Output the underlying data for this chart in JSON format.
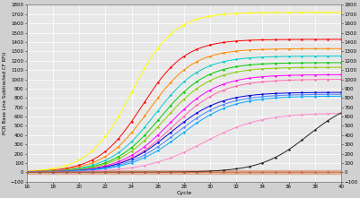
{
  "title": "",
  "xlabel": "Cycle",
  "ylabel": "PCR Base Line Subtracted CF RFU",
  "xlim": [
    16,
    40
  ],
  "ylim": [
    -100,
    1800
  ],
  "yticks": [
    -100,
    0,
    100,
    200,
    300,
    400,
    500,
    600,
    700,
    800,
    900,
    1000,
    1100,
    1200,
    1300,
    1400,
    1500,
    1600,
    1700,
    1800
  ],
  "xticks": [
    16,
    18,
    20,
    22,
    24,
    26,
    28,
    30,
    32,
    34,
    36,
    38,
    40
  ],
  "curves": [
    {
      "color": "#ffff00",
      "plateau": 1720,
      "midpoint": 24.0,
      "steepness": 0.62
    },
    {
      "color": "#ff0000",
      "plateau": 1430,
      "midpoint": 24.8,
      "steepness": 0.6
    },
    {
      "color": "#ff8800",
      "plateau": 1330,
      "midpoint": 25.3,
      "steepness": 0.58
    },
    {
      "color": "#00cccc",
      "plateau": 1250,
      "midpoint": 25.8,
      "steepness": 0.57
    },
    {
      "color": "#00cc00",
      "plateau": 1180,
      "midpoint": 26.2,
      "steepness": 0.56
    },
    {
      "color": "#88cc00",
      "plateau": 1130,
      "midpoint": 26.5,
      "steepness": 0.55
    },
    {
      "color": "#ff00ff",
      "plateau": 1050,
      "midpoint": 26.9,
      "steepness": 0.54
    },
    {
      "color": "#ff66aa",
      "plateau": 1000,
      "midpoint": 27.2,
      "steepness": 0.53
    },
    {
      "color": "#0000dd",
      "plateau": 860,
      "midpoint": 27.0,
      "steepness": 0.53
    },
    {
      "color": "#4488ff",
      "plateau": 840,
      "midpoint": 27.4,
      "steepness": 0.52
    },
    {
      "color": "#00aaff",
      "plateau": 820,
      "midpoint": 27.8,
      "steepness": 0.51
    },
    {
      "color": "#ff88cc",
      "plateau": 640,
      "midpoint": 29.5,
      "steepness": 0.45
    },
    {
      "color": "#222222",
      "plateau": 800,
      "midpoint": 37.5,
      "steepness": 0.55
    },
    {
      "color": "#cc6633",
      "plateau": 25,
      "midpoint": 55.0,
      "steepness": 0.25
    }
  ],
  "highlight_color": "#d4896a",
  "highlight_ymin": -20,
  "highlight_ymax": 18,
  "highlight_alpha": 0.5,
  "fig_facecolor": "#d0d0d0",
  "ax_facecolor": "#e8e8e8"
}
